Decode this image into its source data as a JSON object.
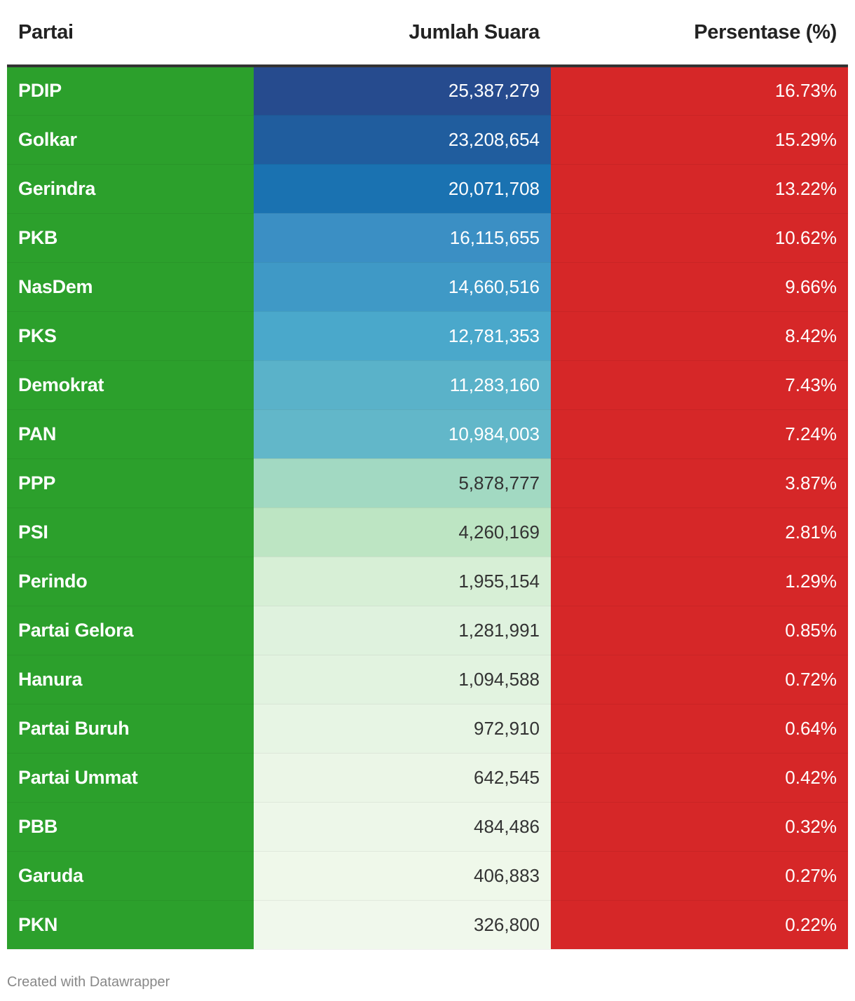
{
  "chart_data": {
    "type": "table",
    "columns": [
      "Partai",
      "Jumlah Suara",
      "Persentase (%)"
    ],
    "rows": [
      {
        "party": "PDIP",
        "votes": "25,387,279",
        "pct": "16.73%",
        "votes_bg": "#264b8e",
        "votes_fg": "#ffffff"
      },
      {
        "party": "Golkar",
        "votes": "23,208,654",
        "pct": "15.29%",
        "votes_bg": "#205d9e",
        "votes_fg": "#ffffff"
      },
      {
        "party": "Gerindra",
        "votes": "20,071,708",
        "pct": "13.22%",
        "votes_bg": "#1a72b1",
        "votes_fg": "#ffffff"
      },
      {
        "party": "PKB",
        "votes": "16,115,655",
        "pct": "10.62%",
        "votes_bg": "#3b8fc4",
        "votes_fg": "#ffffff"
      },
      {
        "party": "NasDem",
        "votes": "14,660,516",
        "pct": "9.66%",
        "votes_bg": "#3f99c6",
        "votes_fg": "#ffffff"
      },
      {
        "party": "PKS",
        "votes": "12,781,353",
        "pct": "8.42%",
        "votes_bg": "#4aa8cb",
        "votes_fg": "#ffffff"
      },
      {
        "party": "Demokrat",
        "votes": "11,283,160",
        "pct": "7.43%",
        "votes_bg": "#5ab2c9",
        "votes_fg": "#ffffff"
      },
      {
        "party": "PAN",
        "votes": "10,984,003",
        "pct": "7.24%",
        "votes_bg": "#62b7c9",
        "votes_fg": "#ffffff"
      },
      {
        "party": "PPP",
        "votes": "5,878,777",
        "pct": "3.87%",
        "votes_bg": "#a2d9c2",
        "votes_fg": "#333333"
      },
      {
        "party": "PSI",
        "votes": "4,260,169",
        "pct": "2.81%",
        "votes_bg": "#bde5c3",
        "votes_fg": "#333333"
      },
      {
        "party": "Perindo",
        "votes": "1,955,154",
        "pct": "1.29%",
        "votes_bg": "#d7efd6",
        "votes_fg": "#333333"
      },
      {
        "party": "Partai Gelora",
        "votes": "1,281,991",
        "pct": "0.85%",
        "votes_bg": "#dff2de",
        "votes_fg": "#333333"
      },
      {
        "party": "Hanura",
        "votes": "1,094,588",
        "pct": "0.72%",
        "votes_bg": "#e2f3e0",
        "votes_fg": "#333333"
      },
      {
        "party": "Partai Buruh",
        "votes": "972,910",
        "pct": "0.64%",
        "votes_bg": "#e7f5e4",
        "votes_fg": "#333333"
      },
      {
        "party": "Partai Ummat",
        "votes": "642,545",
        "pct": "0.42%",
        "votes_bg": "#ebf6e7",
        "votes_fg": "#333333"
      },
      {
        "party": "PBB",
        "votes": "484,486",
        "pct": "0.32%",
        "votes_bg": "#edf7e9",
        "votes_fg": "#333333"
      },
      {
        "party": "Garuda",
        "votes": "406,883",
        "pct": "0.27%",
        "votes_bg": "#eff8ea",
        "votes_fg": "#333333"
      },
      {
        "party": "PKN",
        "votes": "326,800",
        "pct": "0.22%",
        "votes_bg": "#f0f8ec",
        "votes_fg": "#333333"
      }
    ],
    "party_color": "#2ca02c",
    "pct_color": "#d62728"
  },
  "footer": {
    "credit": "Created with Datawrapper"
  }
}
